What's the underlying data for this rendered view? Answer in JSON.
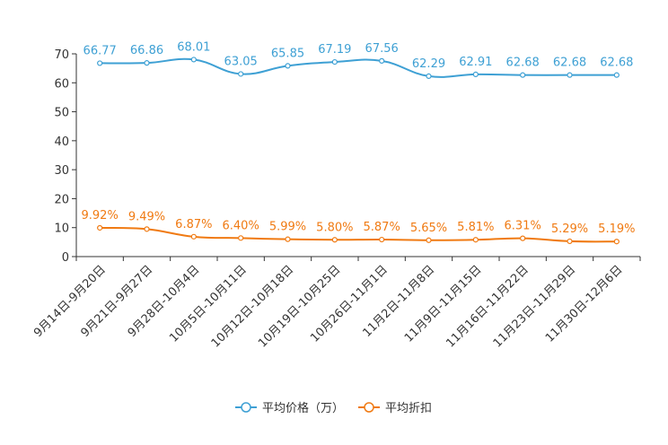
{
  "chart_data": {
    "type": "line",
    "categories": [
      "9月14日-9月20日",
      "9月21日-9月27日",
      "9月28日-10月4日",
      "10月5日-10月11日",
      "10月12日-10月18日",
      "10月19日-10月25日",
      "10月26日-11月1日",
      "11月2日-11月8日",
      "11月9日-11月15日",
      "11月16日-11月22日",
      "11月23日-11月29日",
      "11月30日-12月6日"
    ],
    "series": [
      {
        "name": "平均价格（万）",
        "color": "#3ea0d4",
        "values": [
          66.77,
          66.86,
          68.01,
          63.05,
          65.85,
          67.19,
          67.56,
          62.29,
          62.91,
          62.68,
          62.68,
          62.68
        ],
        "labels": [
          "66.77",
          "66.86",
          "68.01",
          "63.05",
          "65.85",
          "67.19",
          "67.56",
          "62.29",
          "62.91",
          "62.68",
          "62.68",
          "62.68"
        ]
      },
      {
        "name": "平均折扣",
        "color": "#f07a12",
        "values": [
          9.92,
          9.49,
          6.87,
          6.4,
          5.99,
          5.8,
          5.87,
          5.65,
          5.81,
          6.31,
          5.29,
          5.19
        ],
        "labels": [
          "9.92%",
          "9.49%",
          "6.87%",
          "6.40%",
          "5.99%",
          "5.80%",
          "5.87%",
          "5.65%",
          "5.81%",
          "6.31%",
          "5.29%",
          "5.19%"
        ]
      }
    ],
    "y_ticks": [
      "0",
      "10",
      "20",
      "30",
      "40",
      "50",
      "60",
      "70"
    ],
    "ylim": [
      0,
      70
    ],
    "legend_position": "bottom-center",
    "grid": false,
    "title": "",
    "xlabel": "",
    "ylabel": ""
  }
}
